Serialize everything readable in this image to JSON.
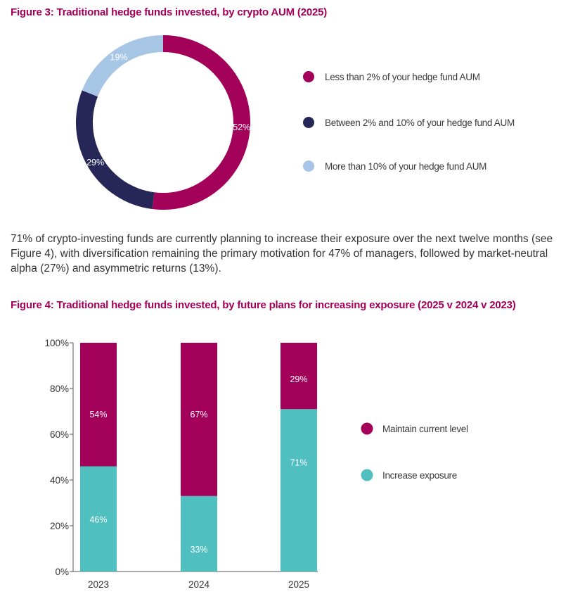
{
  "chart_data": [
    {
      "type": "pie",
      "title": "Figure 3: Traditional hedge funds invested, by crypto AUM (2025)",
      "donut": true,
      "categories": [
        "Less than 2% of your hedge fund AUM",
        "Between 2% and 10% of your hedge fund AUM",
        "More than 10% of your hedge fund AUM"
      ],
      "values": [
        52,
        29,
        19
      ],
      "value_labels": [
        "52%",
        "29%",
        "19%"
      ],
      "colors": [
        "#a3005a",
        "#272659",
        "#a7c5e5"
      ],
      "legend_position": "right"
    },
    {
      "type": "bar",
      "stacked": true,
      "title": "Figure 4: Traditional hedge funds invested, by future plans for increasing exposure (2025 v 2024 v 2023)",
      "categories": [
        "2023",
        "2024",
        "2025"
      ],
      "series": [
        {
          "name": "Increase exposure",
          "values": [
            46,
            33,
            71
          ],
          "labels": [
            "46%",
            "33%",
            "71%"
          ],
          "color": "#4fbfc0"
        },
        {
          "name": "Maintain current level",
          "values": [
            54,
            67,
            29
          ],
          "labels": [
            "54%",
            "67%",
            "29%"
          ],
          "color": "#a3005a"
        }
      ],
      "legend_order": [
        "Maintain current level",
        "Increase exposure"
      ],
      "ylim": [
        0,
        100
      ],
      "yticks": [
        0,
        20,
        40,
        60,
        80,
        100
      ],
      "ytick_labels": [
        "0%",
        "20%",
        "40%",
        "60%",
        "80%",
        "100%"
      ],
      "xlabel": "",
      "ylabel": "",
      "legend_position": "right"
    }
  ],
  "paragraph": "71% of crypto-investing funds are currently planning to increase their exposure over the next twelve months (see Figure 4), with diversification remaining the primary motivation for 47% of managers, followed by market-neutral alpha (27%) and asymmetric returns (13%)."
}
